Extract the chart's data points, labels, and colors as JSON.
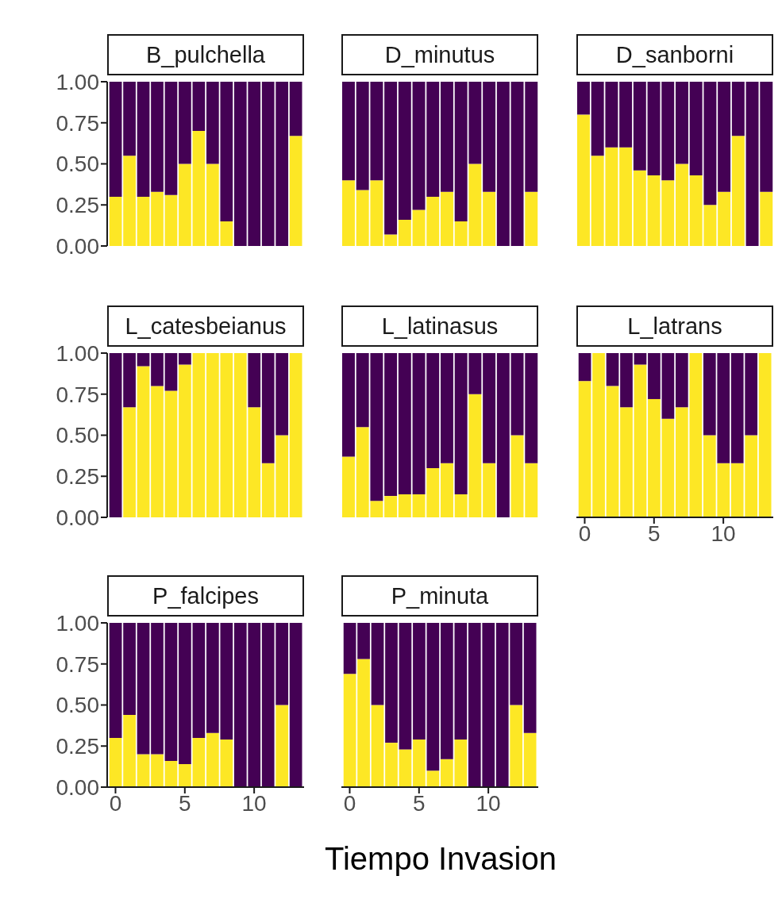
{
  "chart_data": [
    {
      "type": "bar",
      "title": "B_pulchella",
      "stacked": true,
      "x": [
        0,
        1,
        2,
        3,
        4,
        5,
        6,
        7,
        8,
        9,
        10,
        11,
        12,
        13
      ],
      "xlim": [
        -0.6,
        13.6
      ],
      "ylim": [
        0,
        1
      ],
      "yticks": [
        {
          "value": 0,
          "label": "0.00"
        },
        {
          "value": 0.25,
          "label": "0.25"
        },
        {
          "value": 0.5,
          "label": "0.50"
        },
        {
          "value": 0.75,
          "label": "0.75"
        },
        {
          "value": 1,
          "label": "1.00"
        }
      ],
      "tick_labels": "y",
      "series": [
        {
          "color": "#fde725",
          "values": [
            0.3,
            0.55,
            0.3,
            0.33,
            0.31,
            0.5,
            0.7,
            0.5,
            0.15,
            0,
            0,
            0,
            0,
            0.67
          ]
        },
        {
          "color": "#440154",
          "values": [
            0.7,
            0.45,
            0.7,
            0.67,
            0.69,
            0.5,
            0.3,
            0.5,
            0.85,
            1,
            1,
            1,
            1,
            0.33
          ]
        }
      ]
    },
    {
      "type": "bar",
      "title": "D_minutus",
      "stacked": true,
      "x": [
        0,
        1,
        2,
        3,
        4,
        5,
        6,
        7,
        8,
        9,
        10,
        11,
        12,
        13
      ],
      "ylim": [
        0,
        1
      ],
      "tick_labels": false,
      "series": [
        {
          "color": "#fde725",
          "values": [
            0.4,
            0.34,
            0.4,
            0.07,
            0.16,
            0.22,
            0.3,
            0.33,
            0.15,
            0.5,
            0.33,
            0,
            0,
            0.33
          ]
        },
        {
          "color": "#440154",
          "values": [
            0.6,
            0.66,
            0.6,
            0.93,
            0.84,
            0.78,
            0.7,
            0.67,
            0.85,
            0.5,
            0.67,
            1,
            1,
            0.67
          ]
        }
      ]
    },
    {
      "type": "bar",
      "title": "D_sanborni",
      "stacked": true,
      "x": [
        0,
        1,
        2,
        3,
        4,
        5,
        6,
        7,
        8,
        9,
        10,
        11,
        12,
        13
      ],
      "ylim": [
        0,
        1
      ],
      "tick_labels": false,
      "series": [
        {
          "color": "#fde725",
          "values": [
            0.8,
            0.55,
            0.6,
            0.6,
            0.46,
            0.43,
            0.4,
            0.5,
            0.43,
            0.25,
            0.33,
            0.67,
            0,
            0.33
          ]
        },
        {
          "color": "#440154",
          "values": [
            0.2,
            0.45,
            0.4,
            0.4,
            0.54,
            0.57,
            0.6,
            0.5,
            0.57,
            0.75,
            0.67,
            0.33,
            1,
            0.67
          ]
        }
      ]
    },
    {
      "type": "bar",
      "title": "L_catesbeianus",
      "stacked": true,
      "x": [
        0,
        1,
        2,
        3,
        4,
        5,
        6,
        7,
        8,
        9,
        10,
        11,
        12,
        13
      ],
      "xlim": [
        -0.6,
        13.6
      ],
      "ylim": [
        0,
        1
      ],
      "yticks": [
        {
          "value": 0,
          "label": "0.00"
        },
        {
          "value": 0.25,
          "label": "0.25"
        },
        {
          "value": 0.5,
          "label": "0.50"
        },
        {
          "value": 0.75,
          "label": "0.75"
        },
        {
          "value": 1,
          "label": "1.00"
        }
      ],
      "tick_labels": "y",
      "series": [
        {
          "color": "#fde725",
          "values": [
            0,
            0.67,
            0.92,
            0.8,
            0.77,
            0.93,
            1,
            1,
            1,
            1,
            0.67,
            0.33,
            0.5,
            1
          ]
        },
        {
          "color": "#440154",
          "values": [
            1,
            0.33,
            0.08,
            0.2,
            0.23,
            0.07,
            0,
            0,
            0,
            0,
            0.33,
            0.67,
            0.5,
            0
          ]
        }
      ]
    },
    {
      "type": "bar",
      "title": "L_latinasus",
      "stacked": true,
      "x": [
        0,
        1,
        2,
        3,
        4,
        5,
        6,
        7,
        8,
        9,
        10,
        11,
        12,
        13
      ],
      "ylim": [
        0,
        1
      ],
      "tick_labels": false,
      "series": [
        {
          "color": "#fde725",
          "values": [
            0.37,
            0.55,
            0.1,
            0.13,
            0.14,
            0.14,
            0.3,
            0.33,
            0.14,
            0.75,
            0.33,
            0,
            0.5,
            0.33
          ]
        },
        {
          "color": "#440154",
          "values": [
            0.63,
            0.45,
            0.9,
            0.87,
            0.86,
            0.86,
            0.7,
            0.67,
            0.86,
            0.25,
            0.67,
            1,
            0.5,
            0.67
          ]
        }
      ]
    },
    {
      "type": "bar",
      "title": "L_latrans",
      "stacked": true,
      "x": [
        0,
        1,
        2,
        3,
        4,
        5,
        6,
        7,
        8,
        9,
        10,
        11,
        12,
        13
      ],
      "xlim": [
        -0.6,
        13.6
      ],
      "xticks": [
        0,
        5,
        10
      ],
      "ylim": [
        0,
        1
      ],
      "tick_labels": "x",
      "series": [
        {
          "color": "#fde725",
          "values": [
            0.83,
            1,
            0.8,
            0.67,
            0.93,
            0.72,
            0.6,
            0.67,
            1,
            0.5,
            0.33,
            0.33,
            0.5,
            1
          ]
        },
        {
          "color": "#440154",
          "values": [
            0.17,
            0,
            0.2,
            0.33,
            0.07,
            0.28,
            0.4,
            0.33,
            0,
            0.5,
            0.67,
            0.67,
            0.5,
            0
          ]
        }
      ]
    },
    {
      "type": "bar",
      "title": "P_falcipes",
      "stacked": true,
      "x": [
        0,
        1,
        2,
        3,
        4,
        5,
        6,
        7,
        8,
        9,
        10,
        11,
        12,
        13
      ],
      "xlim": [
        -0.6,
        13.6
      ],
      "xticks": [
        0,
        5,
        10
      ],
      "ylim": [
        0,
        1
      ],
      "yticks": [
        {
          "value": 0,
          "label": "0.00"
        },
        {
          "value": 0.25,
          "label": "0.25"
        },
        {
          "value": 0.5,
          "label": "0.50"
        },
        {
          "value": 0.75,
          "label": "0.75"
        },
        {
          "value": 1,
          "label": "1.00"
        }
      ],
      "series": [
        {
          "color": "#fde725",
          "values": [
            0.3,
            0.44,
            0.2,
            0.2,
            0.16,
            0.14,
            0.3,
            0.33,
            0.29,
            0,
            0,
            0,
            0.5,
            0
          ]
        },
        {
          "color": "#440154",
          "values": [
            0.7,
            0.56,
            0.8,
            0.8,
            0.84,
            0.86,
            0.7,
            0.67,
            0.71,
            1,
            1,
            1,
            0.5,
            1
          ]
        }
      ]
    },
    {
      "type": "bar",
      "title": "P_minuta",
      "stacked": true,
      "xlabel": "Tiempo Invasion",
      "x": [
        0,
        1,
        2,
        3,
        4,
        5,
        6,
        7,
        8,
        9,
        10,
        11,
        12,
        13
      ],
      "xlim": [
        -0.6,
        13.6
      ],
      "xticks": [
        0,
        5,
        10
      ],
      "ylim": [
        0,
        1
      ],
      "tick_labels": "x",
      "series": [
        {
          "color": "#fde725",
          "values": [
            0.69,
            0.78,
            0.5,
            0.27,
            0.23,
            0.29,
            0.1,
            0.17,
            0.29,
            0,
            0,
            0,
            0.5,
            0.33
          ]
        },
        {
          "color": "#440154",
          "values": [
            0.31,
            0.22,
            0.5,
            0.73,
            0.77,
            0.71,
            0.9,
            0.83,
            0.71,
            1,
            1,
            1,
            0.5,
            0.67
          ]
        }
      ]
    }
  ]
}
